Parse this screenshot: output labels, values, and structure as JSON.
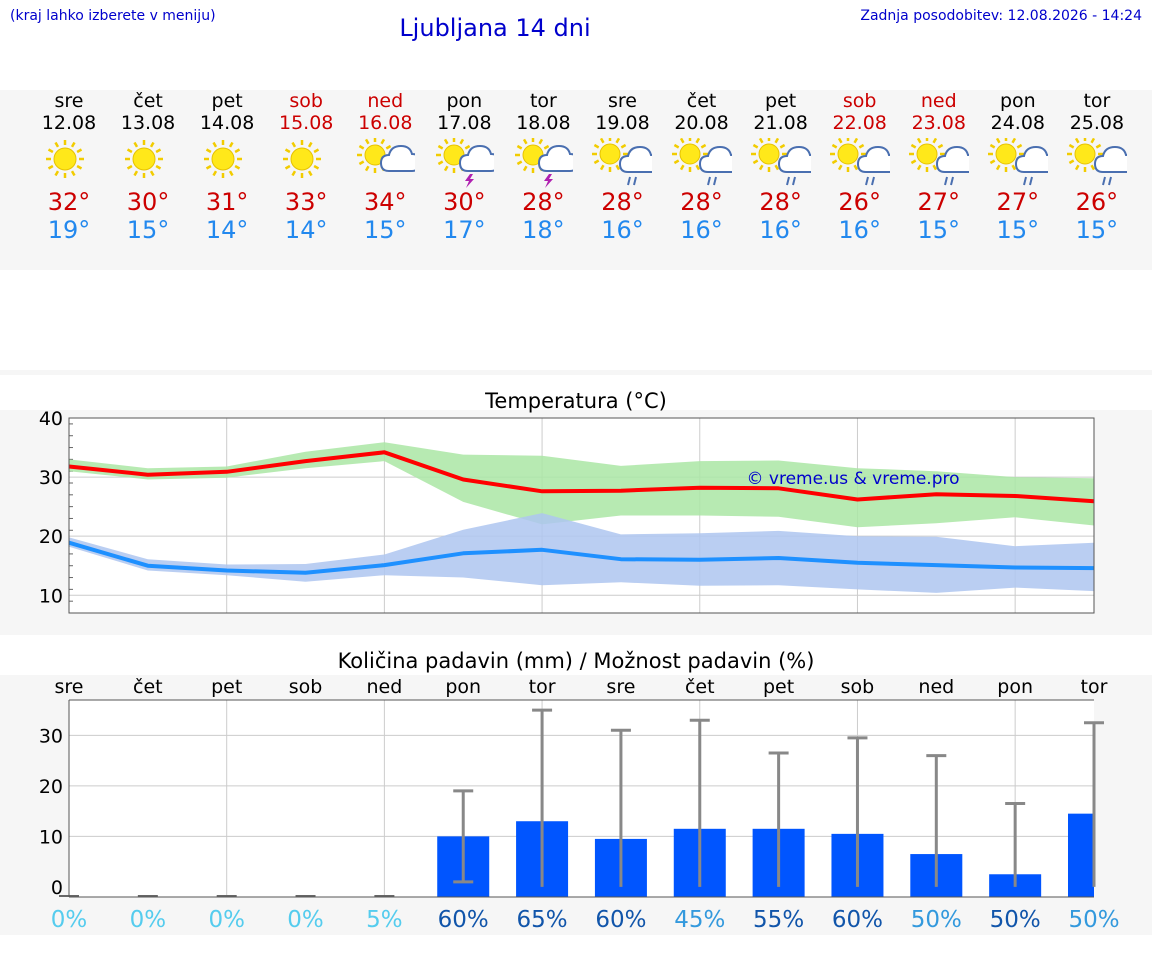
{
  "header": {
    "menu_hint": "(kraj lahko izberete v meniju)",
    "title": "Ljubljana 14 dni",
    "last_update": "Zadnja posodobitev: 12.08.2026 - 14:24"
  },
  "colors": {
    "link_blue": "#0000cc",
    "max_red": "#cc0000",
    "min_blue": "#2288ee",
    "max_line": "#ff0000",
    "max_band": "#aae6a4",
    "min_line": "#1e90ff",
    "min_band": "#aec6f0",
    "bar": "#0055ff",
    "band_bg": "#f6f6f6"
  },
  "forecast": [
    {
      "day": "sre",
      "date": "12.08",
      "weekend": false,
      "icon": "sun-icon",
      "max": "32°",
      "min": "19°"
    },
    {
      "day": "čet",
      "date": "13.08",
      "weekend": false,
      "icon": "sun-icon",
      "max": "30°",
      "min": "15°"
    },
    {
      "day": "pet",
      "date": "14.08",
      "weekend": false,
      "icon": "sun-icon",
      "max": "31°",
      "min": "14°"
    },
    {
      "day": "sob",
      "date": "15.08",
      "weekend": true,
      "icon": "sun-icon",
      "max": "33°",
      "min": "14°"
    },
    {
      "day": "ned",
      "date": "16.08",
      "weekend": true,
      "icon": "sun-cloud-icon",
      "max": "34°",
      "min": "15°"
    },
    {
      "day": "pon",
      "date": "17.08",
      "weekend": false,
      "icon": "thunderstorm-icon",
      "max": "30°",
      "min": "17°"
    },
    {
      "day": "tor",
      "date": "18.08",
      "weekend": false,
      "icon": "thunderstorm-icon",
      "max": "28°",
      "min": "18°"
    },
    {
      "day": "sre",
      "date": "19.08",
      "weekend": false,
      "icon": "rain-icon",
      "max": "28°",
      "min": "16°"
    },
    {
      "day": "čet",
      "date": "20.08",
      "weekend": false,
      "icon": "rain-icon",
      "max": "28°",
      "min": "16°"
    },
    {
      "day": "pet",
      "date": "21.08",
      "weekend": false,
      "icon": "rain-icon",
      "max": "28°",
      "min": "16°"
    },
    {
      "day": "sob",
      "date": "22.08",
      "weekend": true,
      "icon": "rain-icon",
      "max": "26°",
      "min": "16°"
    },
    {
      "day": "ned",
      "date": "23.08",
      "weekend": true,
      "icon": "rain-icon",
      "max": "27°",
      "min": "15°"
    },
    {
      "day": "pon",
      "date": "24.08",
      "weekend": false,
      "icon": "rain-icon",
      "max": "27°",
      "min": "15°"
    },
    {
      "day": "tor",
      "date": "25.08",
      "weekend": false,
      "icon": "rain-icon",
      "max": "26°",
      "min": "15°"
    }
  ],
  "chart_data": [
    {
      "type": "line",
      "title": "Temperatura (°C)",
      "watermark": "© vreme.us & vreme.pro",
      "ylim": [
        7,
        40
      ],
      "yticks": [
        10,
        20,
        30,
        40
      ],
      "grid": true,
      "series": [
        {
          "values": [
            31.8,
            30.4,
            30.9,
            32.7,
            34.2,
            29.6,
            27.6,
            27.7,
            28.2,
            28.1,
            26.2,
            27.1,
            26.8,
            25.9
          ],
          "band_upper": [
            33.0,
            31.5,
            31.8,
            34.3,
            35.9,
            33.8,
            33.6,
            31.9,
            32.7,
            32.8,
            31.5,
            31.0,
            30.0,
            29.8
          ],
          "band_lower": [
            31.0,
            29.6,
            29.9,
            31.5,
            32.7,
            25.8,
            22.0,
            23.5,
            23.5,
            23.3,
            21.5,
            22.2,
            23.2,
            21.8
          ]
        },
        {
          "values": [
            18.9,
            15.0,
            14.2,
            13.8,
            15.1,
            17.1,
            17.7,
            16.1,
            16.0,
            16.3,
            15.5,
            15.1,
            14.7,
            14.6
          ],
          "band_upper": [
            19.8,
            16.1,
            15.2,
            15.3,
            16.9,
            21.1,
            23.9,
            20.3,
            20.5,
            20.9,
            20.0,
            19.9,
            18.3,
            18.9
          ],
          "band_lower": [
            18.2,
            14.2,
            13.4,
            12.3,
            13.4,
            13.0,
            11.7,
            12.2,
            11.6,
            11.7,
            11.0,
            10.4,
            11.3,
            10.7
          ]
        }
      ]
    },
    {
      "type": "bar",
      "title": "Količina padavin (mm) / Možnost padavin (%)",
      "categories": [
        "sre",
        "čet",
        "pet",
        "sob",
        "ned",
        "pon",
        "tor",
        "sre",
        "čet",
        "pet",
        "sob",
        "ned",
        "pon",
        "tor"
      ],
      "ylim": [
        -2,
        37
      ],
      "yticks": [
        0,
        10,
        20,
        30
      ],
      "grid": true,
      "values": [
        0,
        0,
        0,
        0,
        0,
        10,
        13,
        9.5,
        11.5,
        11.5,
        10.5,
        6.5,
        2.5,
        14.5
      ],
      "error_low": [
        0,
        0,
        0,
        0,
        0,
        1,
        0,
        0,
        0,
        0,
        0,
        0,
        0,
        0
      ],
      "error_high": [
        0,
        0,
        0,
        0,
        0,
        19,
        35,
        31,
        33,
        26.5,
        29.5,
        26,
        16.5,
        32.5
      ],
      "probabilities": [
        "0%",
        "0%",
        "0%",
        "0%",
        "5%",
        "60%",
        "65%",
        "60%",
        "45%",
        "55%",
        "60%",
        "50%",
        "50%",
        "50%"
      ],
      "probability_colors": [
        "#55ccee",
        "#55ccee",
        "#55ccee",
        "#55ccee",
        "#55ccee",
        "#1155aa",
        "#1155aa",
        "#1155aa",
        "#3399dd",
        "#1155aa",
        "#1155aa",
        "#3399dd",
        "#1155aa",
        "#3399dd"
      ]
    }
  ]
}
